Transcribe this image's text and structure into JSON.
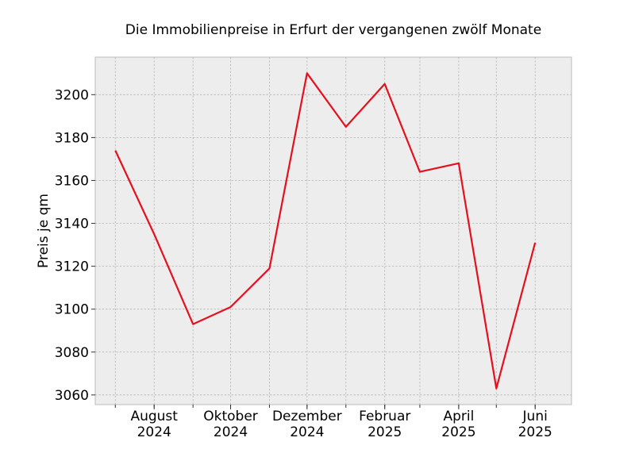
{
  "chart_data": {
    "type": "line",
    "title": "Die Immobilienpreise in Erfurt der vergangenen zwölf Monate",
    "xlabel": "",
    "ylabel": "Preis je qm",
    "x": [
      "2024-07",
      "2024-08",
      "2024-09",
      "2024-10",
      "2024-11",
      "2024-12",
      "2025-01",
      "2025-02",
      "2025-03",
      "2025-04",
      "2025-05",
      "2025-06"
    ],
    "series": [
      {
        "color": "#e3101e",
        "values": [
          3174,
          3135,
          3093,
          3101,
          3119,
          3210,
          3185,
          3205,
          3164,
          3168,
          3063,
          3131
        ]
      }
    ],
    "x_ticks": [
      {
        "x": "2024-08",
        "month": "August",
        "year": "2024"
      },
      {
        "x": "2024-10",
        "month": "Oktober",
        "year": "2024"
      },
      {
        "x": "2024-12",
        "month": "Dezember",
        "year": "2024"
      },
      {
        "x": "2025-02",
        "month": "Februar",
        "year": "2025"
      },
      {
        "x": "2025-04",
        "month": "April",
        "year": "2025"
      },
      {
        "x": "2025-06",
        "month": "Juni",
        "year": "2025"
      }
    ],
    "y_ticks": [
      3060,
      3080,
      3100,
      3120,
      3140,
      3160,
      3180,
      3200
    ],
    "xlim": [
      "2024-06-15",
      "2025-06-30"
    ],
    "ylim": [
      3055.5,
      3217.5
    ],
    "grid": true,
    "background_color": "#ededed"
  }
}
